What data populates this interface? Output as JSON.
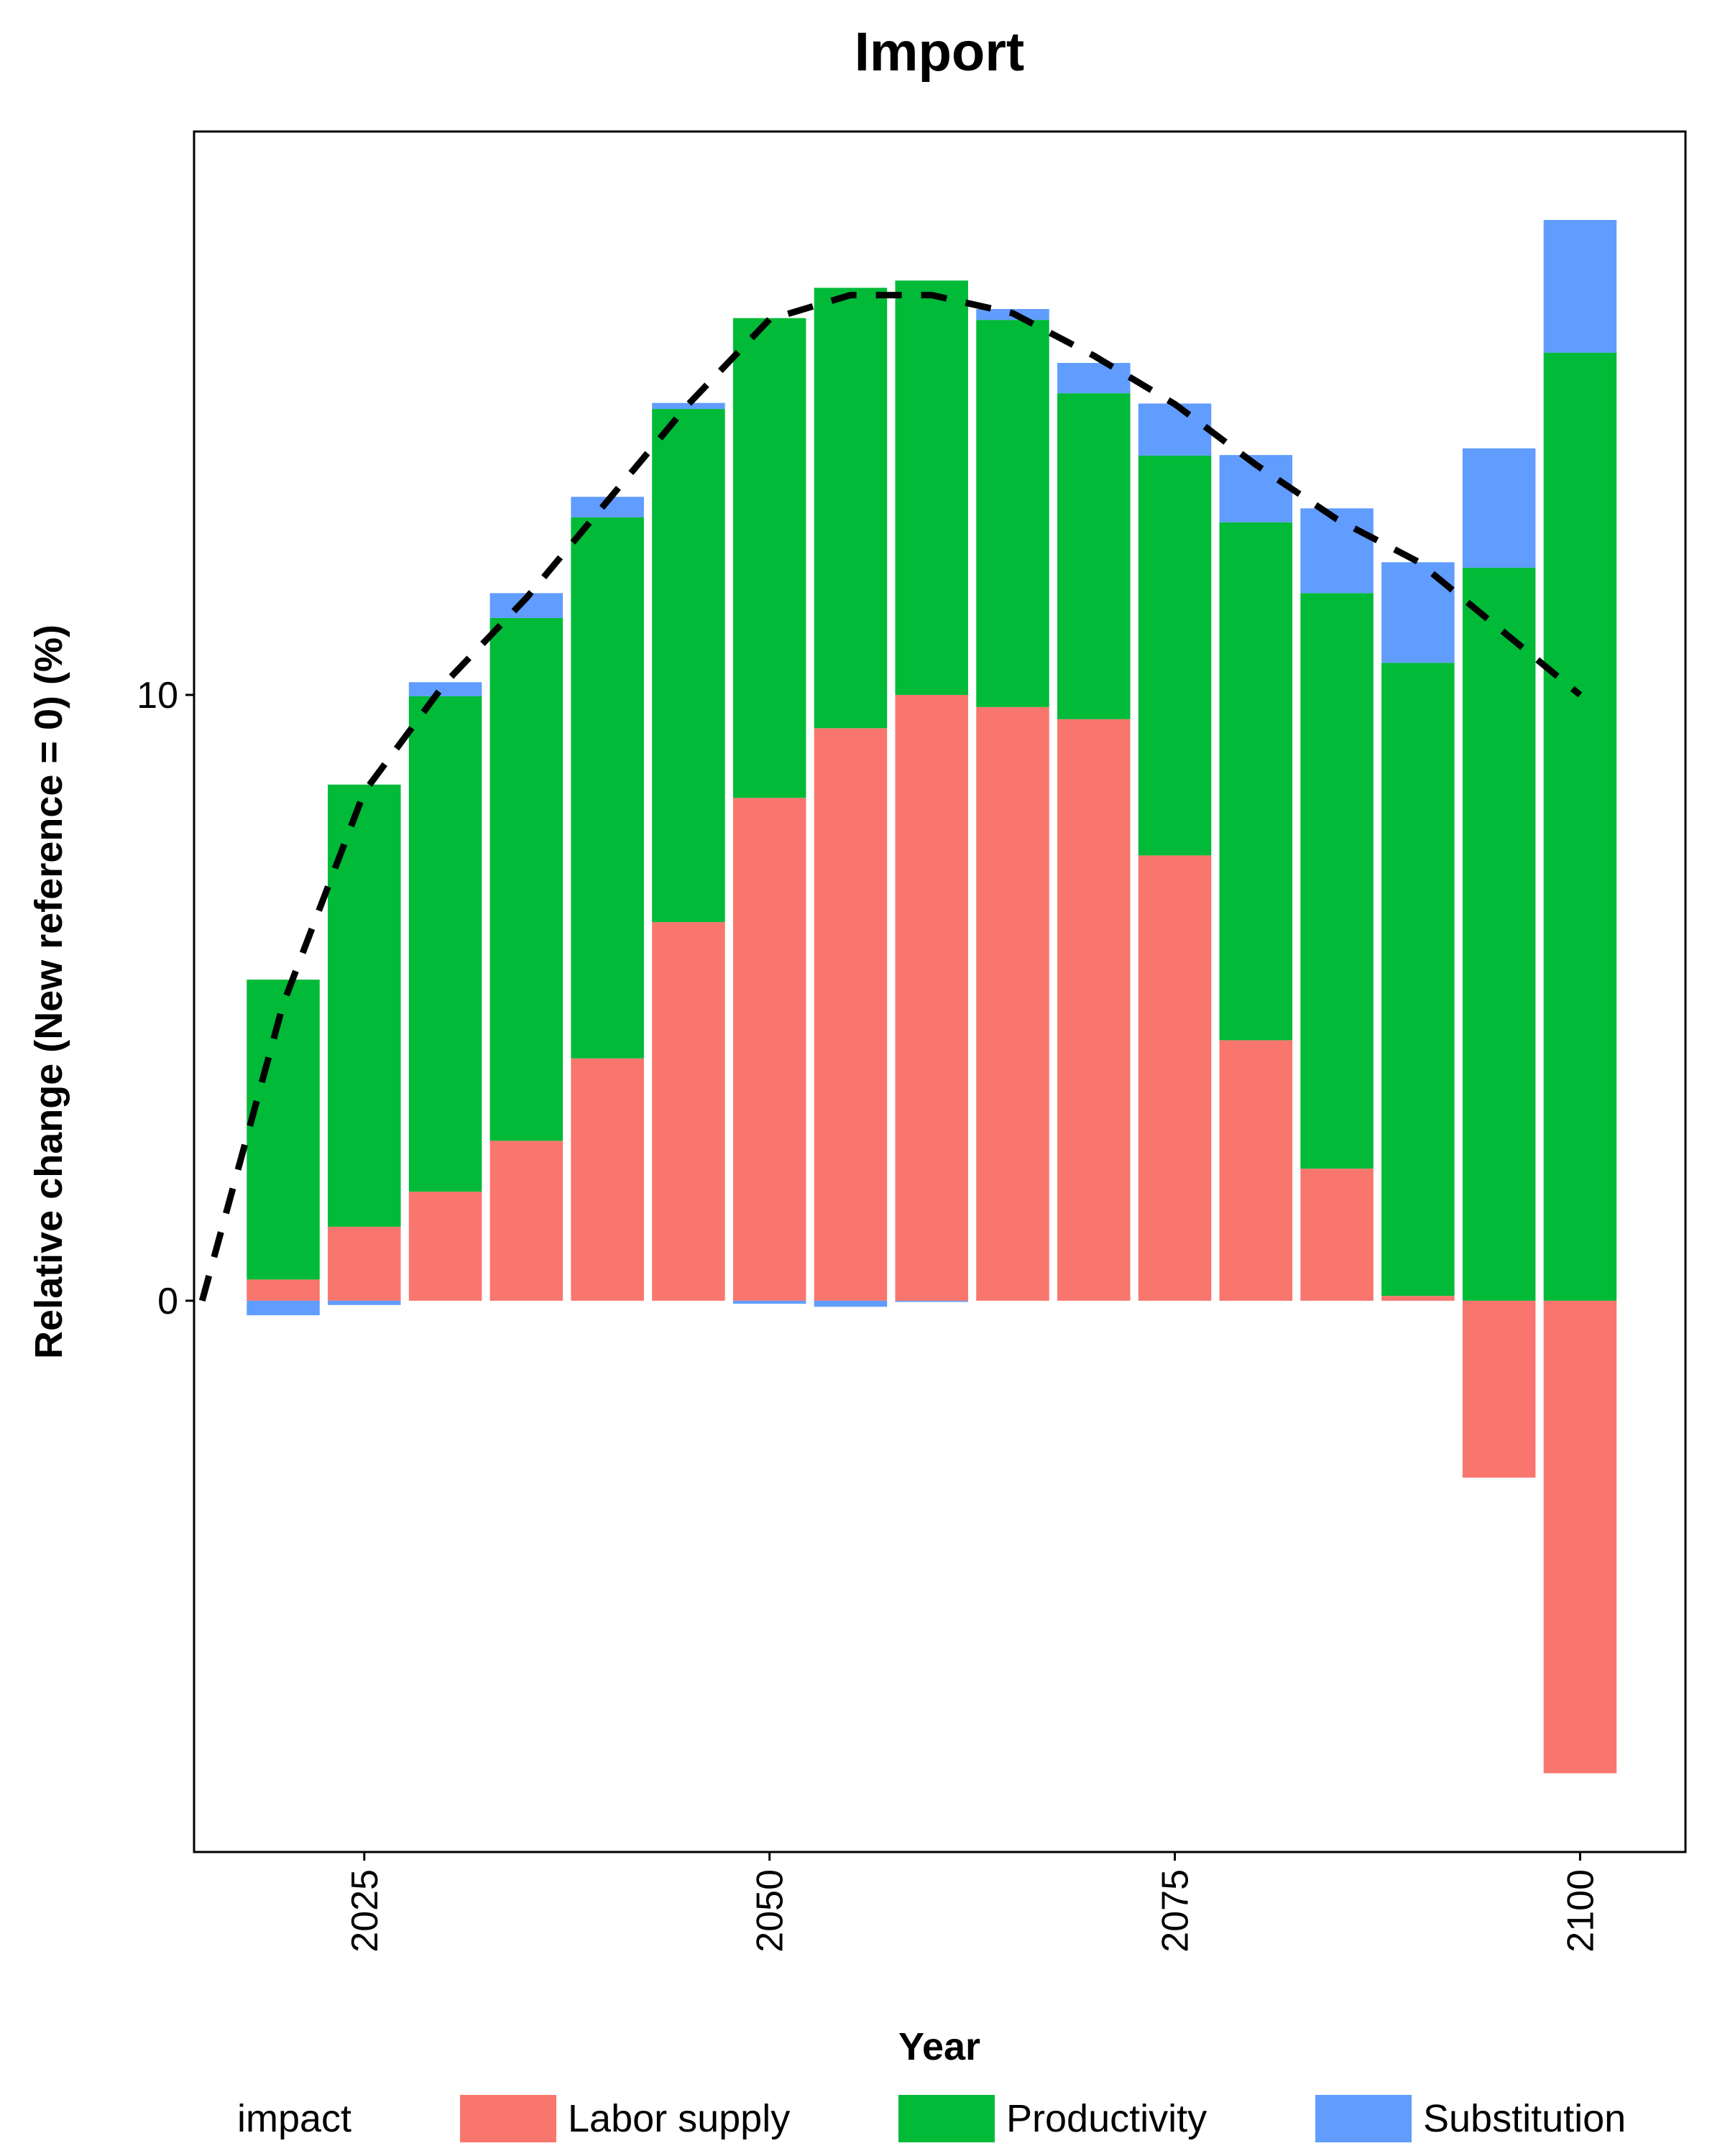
{
  "chart_data": {
    "type": "bar",
    "stacked": true,
    "title": "Import",
    "xlabel": "Year",
    "ylabel": "Relative change (New reference = 0) (%)",
    "x": [
      2020,
      2025,
      2030,
      2035,
      2040,
      2045,
      2050,
      2055,
      2060,
      2065,
      2070,
      2075,
      2080,
      2085,
      2090,
      2095,
      2100
    ],
    "xlim": [
      2014.5,
      2106.5
    ],
    "ylim": [
      -9.1,
      19.3
    ],
    "x_ticks": [
      2025,
      2050,
      2075,
      2100
    ],
    "x_tick_labels": [
      "2025",
      "2050",
      "2075",
      "2100"
    ],
    "y_ticks": [
      0,
      10
    ],
    "y_tick_labels": [
      "0",
      "10"
    ],
    "grid": false,
    "legend": {
      "title": "impact",
      "position": "bottom"
    },
    "series": [
      {
        "name": "Labor supply",
        "color": "#F8766D",
        "values": [
          0.35,
          1.22,
          1.8,
          2.64,
          4.0,
          6.25,
          8.3,
          9.45,
          10.0,
          9.8,
          9.6,
          7.35,
          4.3,
          2.18,
          0.08,
          -2.92,
          -7.8
        ]
      },
      {
        "name": "Productivity",
        "color": "#00BA38",
        "values": [
          4.95,
          7.3,
          8.18,
          8.63,
          8.93,
          8.47,
          7.92,
          7.27,
          6.84,
          6.39,
          5.38,
          6.6,
          8.55,
          9.5,
          10.45,
          12.1,
          15.65
        ]
      },
      {
        "name": "Substitution",
        "color": "#619CFF",
        "values": [
          -0.24,
          -0.07,
          0.23,
          0.41,
          0.34,
          0.1,
          -0.05,
          -0.1,
          -0.02,
          0.18,
          0.5,
          0.86,
          1.11,
          1.4,
          1.66,
          1.97,
          2.19
        ]
      }
    ],
    "total_line": {
      "style": "dashed",
      "color": "#000000",
      "x": [
        2015,
        2020,
        2025,
        2030,
        2035,
        2040,
        2045,
        2050,
        2055,
        2060,
        2065,
        2070,
        2075,
        2080,
        2085,
        2090,
        2095,
        2100
      ],
      "values": [
        0.0,
        4.9,
        8.4,
        10.2,
        11.6,
        13.2,
        14.8,
        16.2,
        16.6,
        16.6,
        16.3,
        15.6,
        14.8,
        13.8,
        12.9,
        12.2,
        11.1,
        10.0
      ]
    }
  }
}
